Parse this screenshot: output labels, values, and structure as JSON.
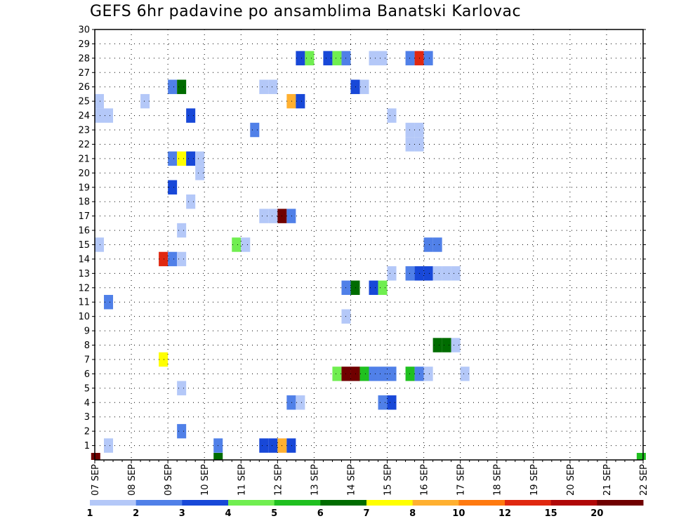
{
  "chart_data": {
    "type": "heatmap",
    "title": "GEFS 6hr padavine po ansamblima Banatski Karlovac",
    "xlabel": "",
    "ylabel": "",
    "x_ticks": [
      "07 SEP",
      "08 SEP",
      "09 SEP",
      "10 SEP",
      "11 SEP",
      "12 SEP",
      "13 SEP",
      "14 SEP",
      "15 SEP",
      "16 SEP",
      "17 SEP",
      "18 SEP",
      "19 SEP",
      "20 SEP",
      "21 SEP",
      "22 SEP"
    ],
    "y_ticks": [
      1,
      2,
      3,
      4,
      5,
      6,
      7,
      8,
      9,
      10,
      11,
      12,
      13,
      14,
      15,
      16,
      17,
      18,
      19,
      20,
      21,
      22,
      23,
      24,
      25,
      26,
      27,
      28,
      29,
      30
    ],
    "xlim": [
      0,
      60
    ],
    "ylim": [
      0,
      30
    ],
    "grid": true,
    "x_unit": "6-hour steps from 07 SEP 00z",
    "colorbar": {
      "labels": [
        "1",
        "2",
        "3",
        "4",
        "5",
        "6",
        "7",
        "8",
        "10",
        "12",
        "15",
        "20"
      ],
      "colors": [
        "#b4c8f8",
        "#5080e8",
        "#1848d8",
        "#70ee50",
        "#20c020",
        "#006c00",
        "#ffff00",
        "#ffb030",
        "#ff7a10",
        "#e02810",
        "#b00808",
        "#700000"
      ]
    },
    "cells": [
      [
        0.5,
        24,
        0
      ],
      [
        0.5,
        25,
        0
      ],
      [
        0.5,
        15,
        0
      ],
      [
        1.5,
        24,
        0
      ],
      [
        1.5,
        11,
        1
      ],
      [
        1.5,
        1,
        0
      ],
      [
        5.5,
        25,
        0
      ],
      [
        7.5,
        14,
        9
      ],
      [
        7.5,
        7,
        6
      ],
      [
        8.5,
        26,
        1
      ],
      [
        8.5,
        21,
        1
      ],
      [
        8.5,
        19,
        2
      ],
      [
        8.5,
        14,
        1
      ],
      [
        9.5,
        26,
        5
      ],
      [
        9.5,
        21,
        6
      ],
      [
        9.5,
        16,
        0
      ],
      [
        9.5,
        14,
        0
      ],
      [
        9.5,
        5,
        0
      ],
      [
        9.5,
        2,
        1
      ],
      [
        10.5,
        24,
        2
      ],
      [
        10.5,
        21,
        2
      ],
      [
        10.5,
        18,
        0
      ],
      [
        11.5,
        20,
        0
      ],
      [
        11.5,
        21,
        0
      ],
      [
        13.5,
        1,
        1
      ],
      [
        15.5,
        15,
        3
      ],
      [
        16.5,
        15,
        0
      ],
      [
        17.5,
        23,
        1
      ],
      [
        18.5,
        26,
        0
      ],
      [
        18.5,
        17,
        0
      ],
      [
        18.5,
        1,
        2
      ],
      [
        19.5,
        26,
        0
      ],
      [
        19.5,
        17,
        0
      ],
      [
        19.5,
        1,
        2
      ],
      [
        20.5,
        17,
        11
      ],
      [
        20.5,
        1,
        7
      ],
      [
        21.5,
        25,
        7
      ],
      [
        21.5,
        17,
        1
      ],
      [
        21.5,
        4,
        1
      ],
      [
        21.5,
        1,
        2
      ],
      [
        22.5,
        28,
        2
      ],
      [
        22.5,
        25,
        2
      ],
      [
        22.5,
        4,
        0
      ],
      [
        23.5,
        28,
        3
      ],
      [
        25.5,
        28,
        2
      ],
      [
        26.5,
        28,
        3
      ],
      [
        26.5,
        6,
        3
      ],
      [
        27.5,
        28,
        1
      ],
      [
        27.5,
        12,
        1
      ],
      [
        27.5,
        10,
        0
      ],
      [
        27.5,
        6,
        11
      ],
      [
        28.5,
        26,
        2
      ],
      [
        28.5,
        12,
        5
      ],
      [
        28.5,
        6,
        11
      ],
      [
        29.5,
        26,
        0
      ],
      [
        29.5,
        6,
        4
      ],
      [
        30.5,
        28,
        0
      ],
      [
        30.5,
        12,
        2
      ],
      [
        30.5,
        6,
        1
      ],
      [
        31.5,
        28,
        0
      ],
      [
        31.5,
        12,
        3
      ],
      [
        31.5,
        6,
        1
      ],
      [
        31.5,
        4,
        1
      ],
      [
        32.5,
        24,
        0
      ],
      [
        32.5,
        13,
        0
      ],
      [
        32.5,
        6,
        1
      ],
      [
        32.5,
        4,
        2
      ],
      [
        34.5,
        28,
        1
      ],
      [
        34.5,
        23,
        0
      ],
      [
        34.5,
        22,
        0
      ],
      [
        34.5,
        13,
        1
      ],
      [
        34.5,
        6,
        4
      ],
      [
        35.5,
        28,
        9
      ],
      [
        35.5,
        23,
        0
      ],
      [
        35.5,
        22,
        0
      ],
      [
        35.5,
        13,
        2
      ],
      [
        35.5,
        6,
        1
      ],
      [
        36.5,
        28,
        1
      ],
      [
        36.5,
        15,
        1
      ],
      [
        36.5,
        13,
        2
      ],
      [
        36.5,
        6,
        0
      ],
      [
        37.5,
        15,
        1
      ],
      [
        37.5,
        13,
        0
      ],
      [
        37.5,
        8,
        5
      ],
      [
        38.5,
        13,
        0
      ],
      [
        38.5,
        8,
        5
      ],
      [
        39.5,
        13,
        0
      ],
      [
        39.5,
        8,
        0
      ],
      [
        40.5,
        6,
        0
      ]
    ],
    "bottom_marks": [
      {
        "x": 0.1,
        "color_index": 11
      },
      {
        "x": 13.5,
        "color_index": 5
      },
      {
        "x": 59.8,
        "color_index": 4
      }
    ]
  }
}
